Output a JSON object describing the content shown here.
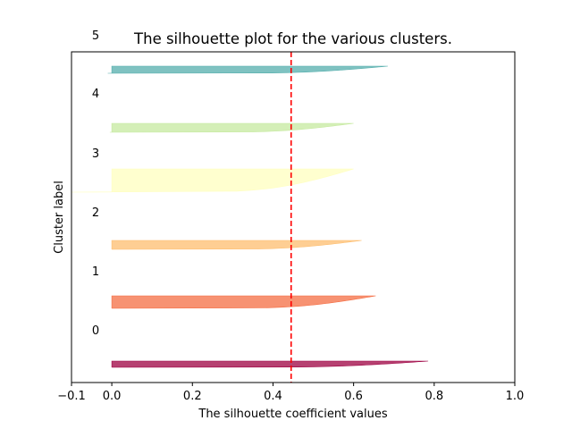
{
  "chart_data": {
    "type": "area",
    "title": "The silhouette plot for the various clusters.",
    "xlabel": "The silhouette coefficient values",
    "ylabel": "Cluster label",
    "xlim": [
      -0.1,
      1.0
    ],
    "xticks": [
      "−0.1",
      "0.0",
      "0.2",
      "0.4",
      "0.6",
      "0.8",
      "1.0"
    ],
    "xtick_values": [
      -0.1,
      0.0,
      0.2,
      0.4,
      0.6,
      0.8,
      1.0
    ],
    "grid": false,
    "legend": "none",
    "average_silhouette_score": 0.445,
    "average_line_color": "#ff0000",
    "clusters": [
      {
        "label": "0",
        "color": "#9e0142",
        "max": 0.785,
        "min": 0.0
      },
      {
        "label": "1",
        "color": "#f46d43",
        "max": 0.655,
        "min": 0.0
      },
      {
        "label": "2",
        "color": "#fdbe6f",
        "max": 0.62,
        "min": 0.0
      },
      {
        "label": "3",
        "color": "#ffffbf",
        "max": 0.6,
        "min": -0.1
      },
      {
        "label": "4",
        "color": "#c6e99f",
        "max": 0.6,
        "min": -0.005
      },
      {
        "label": "5",
        "color": "#54aeac",
        "max": 0.685,
        "min": -0.01
      }
    ]
  }
}
